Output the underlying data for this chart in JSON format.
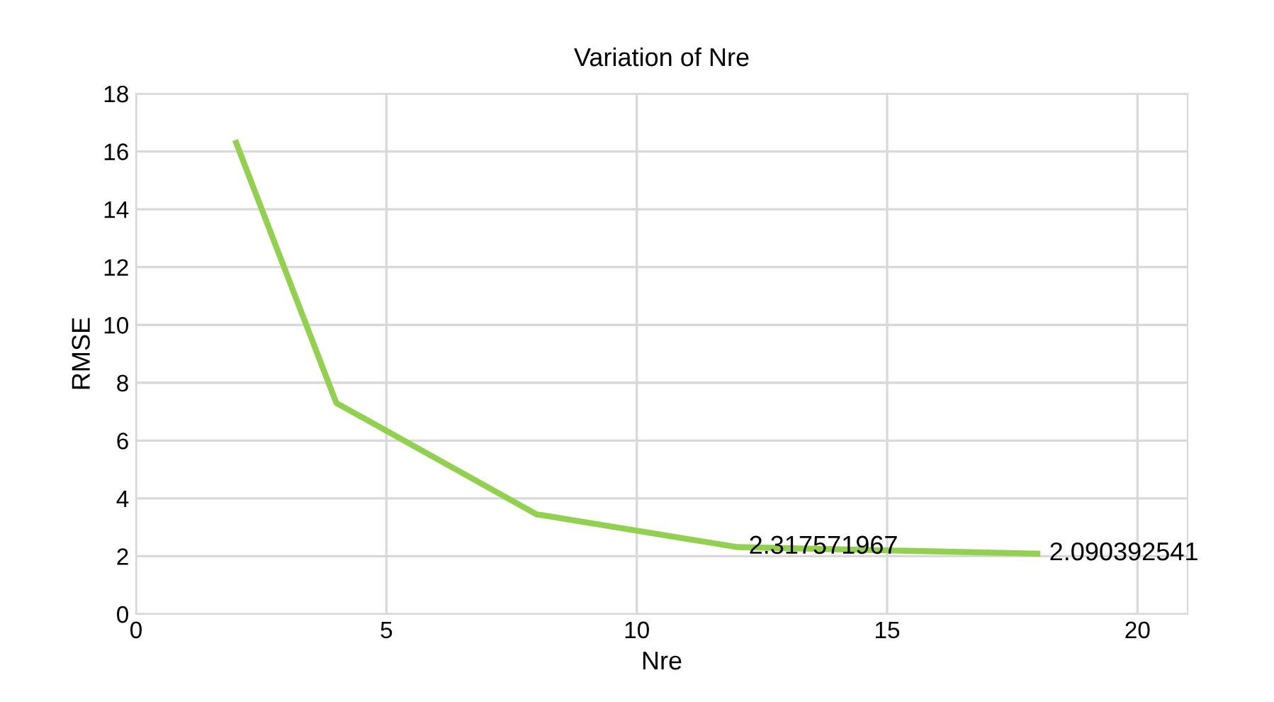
{
  "chart_data": {
    "type": "line",
    "title": "Variation of Nre",
    "xlabel": "Nre",
    "ylabel": "RMSE",
    "x": [
      2,
      4,
      8,
      12,
      18
    ],
    "series": [
      {
        "color": "#92d050",
        "values": [
          16.3,
          7.3,
          3.45,
          2.317571967,
          2.090392541
        ],
        "value_labels": [
          null,
          null,
          null,
          "2.317571967",
          "2.090392541"
        ]
      }
    ],
    "xlim": [
      0,
      21
    ],
    "xticks": [
      0,
      5,
      10,
      15,
      20
    ],
    "ylim": [
      0,
      18
    ],
    "yticks": [
      0,
      2,
      4,
      6,
      8,
      10,
      12,
      14,
      16,
      18
    ],
    "grid": true,
    "marker": "none",
    "line_style": "solid"
  }
}
